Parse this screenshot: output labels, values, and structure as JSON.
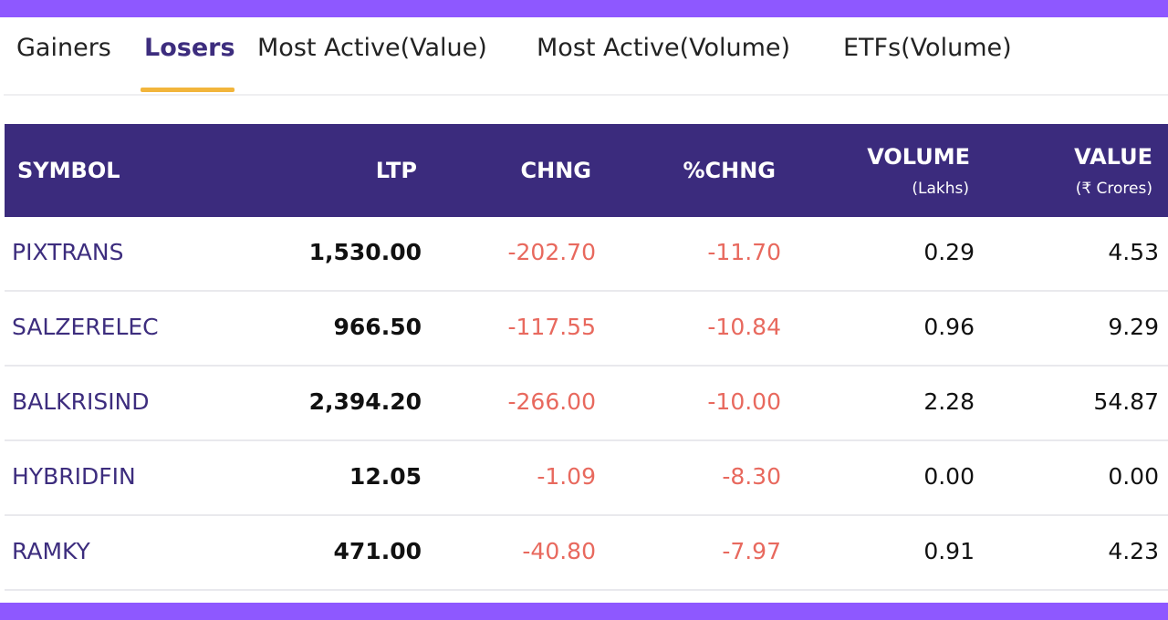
{
  "tabs": [
    {
      "label": "Gainers",
      "active": false
    },
    {
      "label": "Losers",
      "active": true
    },
    {
      "label": "Most Active(Value)",
      "active": false
    },
    {
      "label": "Most Active(Volume)",
      "active": false
    },
    {
      "label": "ETFs(Volume)",
      "active": false
    }
  ],
  "table": {
    "headers": {
      "symbol": "SYMBOL",
      "ltp": "LTP",
      "chng": "CHNG",
      "pct_chng": "%CHNG",
      "volume": "VOLUME",
      "volume_unit": "(Lakhs)",
      "value": "VALUE",
      "value_unit": "(₹ Crores)"
    },
    "rows": [
      {
        "symbol": "PIXTRANS",
        "ltp": "1,530.00",
        "chng": "-202.70",
        "pct_chng": "-11.70",
        "volume": "0.29",
        "value": "4.53"
      },
      {
        "symbol": "SALZERELEC",
        "ltp": "966.50",
        "chng": "-117.55",
        "pct_chng": "-10.84",
        "volume": "0.96",
        "value": "9.29"
      },
      {
        "symbol": "BALKRISIND",
        "ltp": "2,394.20",
        "chng": "-266.00",
        "pct_chng": "-10.00",
        "volume": "2.28",
        "value": "54.87"
      },
      {
        "symbol": "HYBRIDFIN",
        "ltp": "12.05",
        "chng": "-1.09",
        "pct_chng": "-8.30",
        "volume": "0.00",
        "value": "0.00"
      },
      {
        "symbol": "RAMKY",
        "ltp": "471.00",
        "chng": "-40.80",
        "pct_chng": "-7.97",
        "volume": "0.91",
        "value": "4.23"
      }
    ]
  },
  "colors": {
    "frame_accent": "#8e58ff",
    "header_bg": "#3b2b7d",
    "active_tab_underline": "#f2b53b",
    "negative": "#e8695e",
    "symbol_link": "#3d2d7e"
  }
}
